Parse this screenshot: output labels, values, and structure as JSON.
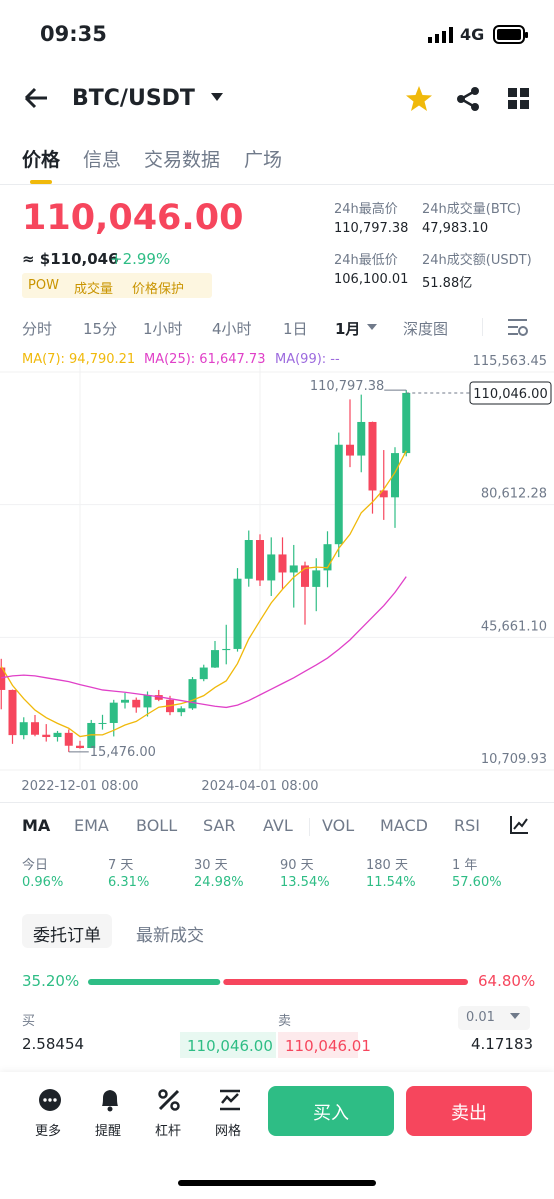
{
  "status_bar": {
    "time": "09:35",
    "network": "4G"
  },
  "header": {
    "pair": "BTC/USDT"
  },
  "tabs": [
    "价格",
    "信息",
    "交易数据",
    "广场"
  ],
  "price": {
    "last": "110,046.00",
    "usd": "≈ $110,046",
    "change": "+2.99%",
    "tags": [
      "POW",
      "成交量",
      "价格保护"
    ]
  },
  "stats": [
    {
      "label": "24h最高价",
      "value": "110,797.38"
    },
    {
      "label": "24h成交量(BTC)",
      "value": "47,983.10"
    },
    {
      "label": "24h最低价",
      "value": "106,100.01"
    },
    {
      "label": "24h成交额(USDT)",
      "value": "51.88亿"
    }
  ],
  "intervals": [
    "分时",
    "15分",
    "1小时",
    "4小时",
    "1日",
    "1月",
    "深度图"
  ],
  "chart_data": {
    "type": "candlestick",
    "x": [
      null,
      null,
      null,
      null,
      null,
      null,
      null,
      "2022-12-01 08:00",
      null,
      null,
      null,
      null,
      null,
      null,
      null,
      null,
      null,
      null,
      null,
      null,
      null,
      null,
      null,
      "2024-04-01 08:00",
      null,
      null,
      null,
      null,
      null,
      null,
      null,
      null,
      null,
      null,
      null,
      null,
      null
    ],
    "open": [
      37700,
      31800,
      19900,
      23300,
      20000,
      19400,
      20500,
      17100,
      16500,
      23100,
      23100,
      28450,
      29200,
      27200,
      30450,
      29200,
      25950,
      26950,
      34650,
      37700,
      42300,
      42600,
      61100,
      71300,
      60650,
      67500,
      62750,
      64600,
      58950,
      63300,
      70200,
      96400,
      93550,
      102400,
      84350,
      82550,
      94200
    ],
    "high": [
      40000,
      31900,
      24600,
      25200,
      22800,
      21000,
      21400,
      18400,
      23900,
      25250,
      29200,
      31000,
      29800,
      31400,
      31800,
      30250,
      27500,
      35200,
      38450,
      44700,
      48970,
      63900,
      73800,
      72800,
      72000,
      72000,
      70000,
      65600,
      66500,
      73600,
      99600,
      108350,
      109600,
      102500,
      95000,
      95750,
      110797.38
    ],
    "low": [
      26700,
      17600,
      18800,
      19600,
      18200,
      18200,
      15476,
      16300,
      16500,
      21350,
      19550,
      26900,
      25800,
      24800,
      28850,
      25150,
      24900,
      26550,
      34100,
      37600,
      38550,
      41900,
      59000,
      59200,
      56550,
      58400,
      53500,
      49000,
      52550,
      58850,
      66800,
      90500,
      89150,
      78250,
      76600,
      74500,
      93350
    ],
    "close": [
      31800,
      19900,
      23300,
      20000,
      19400,
      20500,
      17100,
      16500,
      23100,
      23100,
      28450,
      29200,
      27200,
      30450,
      29200,
      25950,
      26950,
      34650,
      37700,
      42300,
      42600,
      61100,
      71300,
      60650,
      67500,
      62750,
      64600,
      58950,
      63300,
      70200,
      96400,
      93550,
      102400,
      84350,
      82550,
      94200,
      110046
    ],
    "up_color": "#2ebd85",
    "down_color": "#f6465d",
    "series": [
      {
        "name": "MA(7): 94,790.21",
        "color": "#f0b90b",
        "values": [
          38000,
          33000,
          29500,
          26500,
          24500,
          23000,
          21714,
          19529,
          19986,
          19957,
          21164,
          22564,
          23521,
          25429,
          27243,
          27650,
          28200,
          29086,
          30300,
          32457,
          34193,
          38750,
          45229,
          50043,
          54736,
          58314,
          61500,
          63836,
          64150,
          63993,
          69100,
          72821,
          78486,
          81307,
          84679,
          89093,
          94790.21
        ]
      },
      {
        "name": "MA(25): 61,647.73",
        "color": "#e040c8",
        "values": [
          35000,
          35500,
          35700,
          35500,
          35000,
          34500,
          34000,
          33200,
          32500,
          31800,
          31500,
          31200,
          30800,
          30400,
          30000,
          29500,
          29000,
          28500,
          28000,
          27500,
          27200,
          27800,
          29000,
          30500,
          32000,
          33500,
          35000,
          36700,
          38400,
          40200,
          42500,
          45000,
          48000,
          51000,
          54000,
          57500,
          61647.73
        ]
      },
      {
        "name": "MA(99): --",
        "color": "#9c6ade",
        "values": [
          null,
          null,
          null,
          null,
          null,
          null,
          null,
          null,
          null,
          null,
          null,
          null,
          null,
          null,
          null,
          null,
          null,
          null,
          null,
          null,
          null,
          null,
          null,
          null,
          null,
          null,
          null,
          null,
          null,
          null,
          null,
          null,
          null,
          null,
          null,
          null,
          null
        ]
      }
    ],
    "ylim": [
      10709.93,
      115563.45
    ],
    "yticks": [
      {
        "value": 10709.93,
        "label": "10,709.93"
      },
      {
        "value": 45661.1,
        "label": "45,661.10"
      },
      {
        "value": 80612.28,
        "label": "80,612.28"
      },
      {
        "value": 115563.45,
        "label": "115,563.45"
      }
    ],
    "grid": true,
    "high_label": "110,797.38",
    "low_label": "15,476.00",
    "last_price_label": "110,046.00"
  },
  "indicators": [
    "MA",
    "EMA",
    "BOLL",
    "SAR",
    "AVL",
    "VOL",
    "MACD",
    "RSI"
  ],
  "performance": [
    {
      "label": "今日",
      "value": "0.96%"
    },
    {
      "label": "7 天",
      "value": "6.31%"
    },
    {
      "label": "30 天",
      "value": "24.98%"
    },
    {
      "label": "90 天",
      "value": "13.54%"
    },
    {
      "label": "180 天",
      "value": "11.54%"
    },
    {
      "label": "1 年",
      "value": "57.60%"
    }
  ],
  "order_tabs": [
    "委托订单",
    "最新成交"
  ],
  "depth_ratio": {
    "buy": {
      "value": 35.2,
      "label": "35.20%"
    },
    "sell": {
      "value": 64.8,
      "label": "64.80%"
    }
  },
  "order_book": {
    "buy_label": "买",
    "sell_label": "卖",
    "precision": "0.01",
    "rows": [
      [
        "2.58454",
        "110,046.00",
        "110,046.01",
        "4.17183"
      ]
    ]
  },
  "bottom_bar": {
    "actions": [
      "更多",
      "提醒",
      "杠杆",
      "网格"
    ],
    "buy": "买入",
    "sell": "卖出"
  }
}
